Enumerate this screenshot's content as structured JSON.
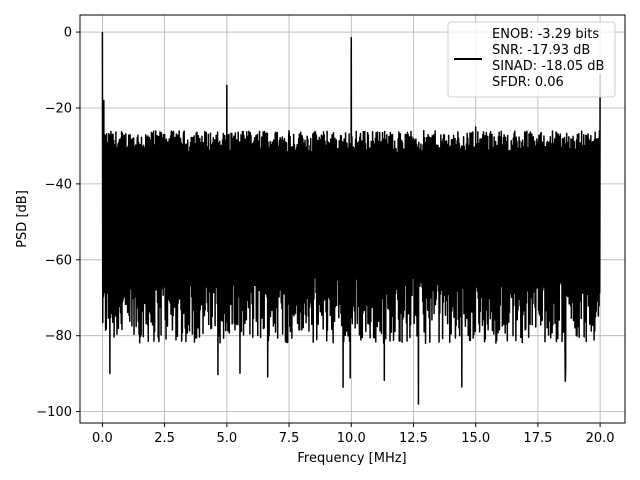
{
  "chart_data": {
    "type": "line",
    "title": "",
    "xlabel": "Frequency [MHz]",
    "ylabel": "PSD [dB]",
    "xlim": [
      -0.9,
      21.0
    ],
    "ylim": [
      -103,
      4.5
    ],
    "xticks": [
      0.0,
      2.5,
      5.0,
      7.5,
      10.0,
      12.5,
      15.0,
      17.5,
      20.0
    ],
    "xtick_labels": [
      "0.0",
      "2.5",
      "5.0",
      "7.5",
      "10.0",
      "12.5",
      "15.0",
      "17.5",
      "20.0"
    ],
    "yticks": [
      0,
      -20,
      -40,
      -60,
      -80,
      -100
    ],
    "ytick_labels": [
      "0",
      "−20",
      "−40",
      "−60",
      "−80",
      "−100"
    ],
    "grid": true,
    "legend_position": "top-right",
    "series": [
      {
        "color": "#000000",
        "legend_lines": [
          "ENOB: -3.29 bits",
          "SNR: -17.93 dB",
          "SINAD: -18.05 dB",
          "SFDR: 0.06"
        ],
        "x_range": [
          0.0,
          20.0
        ],
        "noise_envelope": {
          "upper_dB": -30,
          "lower_dB": -70,
          "deep_dips_dB": [
            -90,
            -98,
            -92
          ]
        },
        "peaks": [
          {
            "x": 0.0,
            "y": 0.0
          },
          {
            "x": 0.05,
            "y": -18
          },
          {
            "x": 2.5,
            "y": -27
          },
          {
            "x": 5.0,
            "y": -14
          },
          {
            "x": 7.5,
            "y": -26
          },
          {
            "x": 10.0,
            "y": -1.5
          },
          {
            "x": 12.5,
            "y": -28
          },
          {
            "x": 15.0,
            "y": -25
          },
          {
            "x": 17.5,
            "y": -29
          },
          {
            "x": 20.0,
            "y": -11
          }
        ]
      }
    ]
  }
}
